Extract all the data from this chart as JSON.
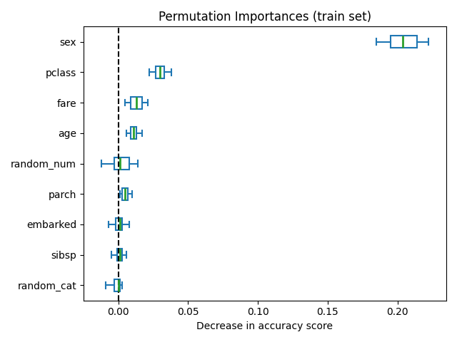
{
  "title": "Permutation Importances (train set)",
  "xlabel": "Decrease in accuracy score",
  "features": [
    "sex",
    "pclass",
    "fare",
    "age",
    "random_num",
    "parch",
    "embarked",
    "sibsp",
    "random_cat"
  ],
  "box_data": {
    "sex": {
      "whislo": 0.185,
      "q1": 0.195,
      "med": 0.204,
      "q3": 0.214,
      "whishi": 0.222
    },
    "pclass": {
      "whislo": 0.022,
      "q1": 0.027,
      "med": 0.03,
      "q3": 0.033,
      "whishi": 0.038
    },
    "fare": {
      "whislo": 0.005,
      "q1": 0.009,
      "med": 0.013,
      "q3": 0.017,
      "whishi": 0.021
    },
    "age": {
      "whislo": 0.006,
      "q1": 0.009,
      "med": 0.011,
      "q3": 0.013,
      "whishi": 0.017
    },
    "random_num": {
      "whislo": -0.012,
      "q1": -0.003,
      "med": 0.001,
      "q3": 0.008,
      "whishi": 0.014
    },
    "parch": {
      "whislo": 0.001,
      "q1": 0.003,
      "med": 0.005,
      "q3": 0.007,
      "whishi": 0.01
    },
    "embarked": {
      "whislo": -0.007,
      "q1": -0.002,
      "med": 0.001,
      "q3": 0.003,
      "whishi": 0.008
    },
    "sibsp": {
      "whislo": -0.005,
      "q1": -0.001,
      "med": 0.001,
      "q3": 0.003,
      "whishi": 0.006
    },
    "random_cat": {
      "whislo": -0.009,
      "q1": -0.003,
      "med": 0.0,
      "q3": 0.001,
      "whishi": 0.003
    }
  },
  "box_color": "#1f77b4",
  "median_color": "#2ca02c",
  "vline_x": 0.0,
  "xlim": [
    -0.025,
    0.235
  ],
  "box_width": 0.4,
  "figsize": [
    6.4,
    4.8
  ],
  "dpi": 100
}
